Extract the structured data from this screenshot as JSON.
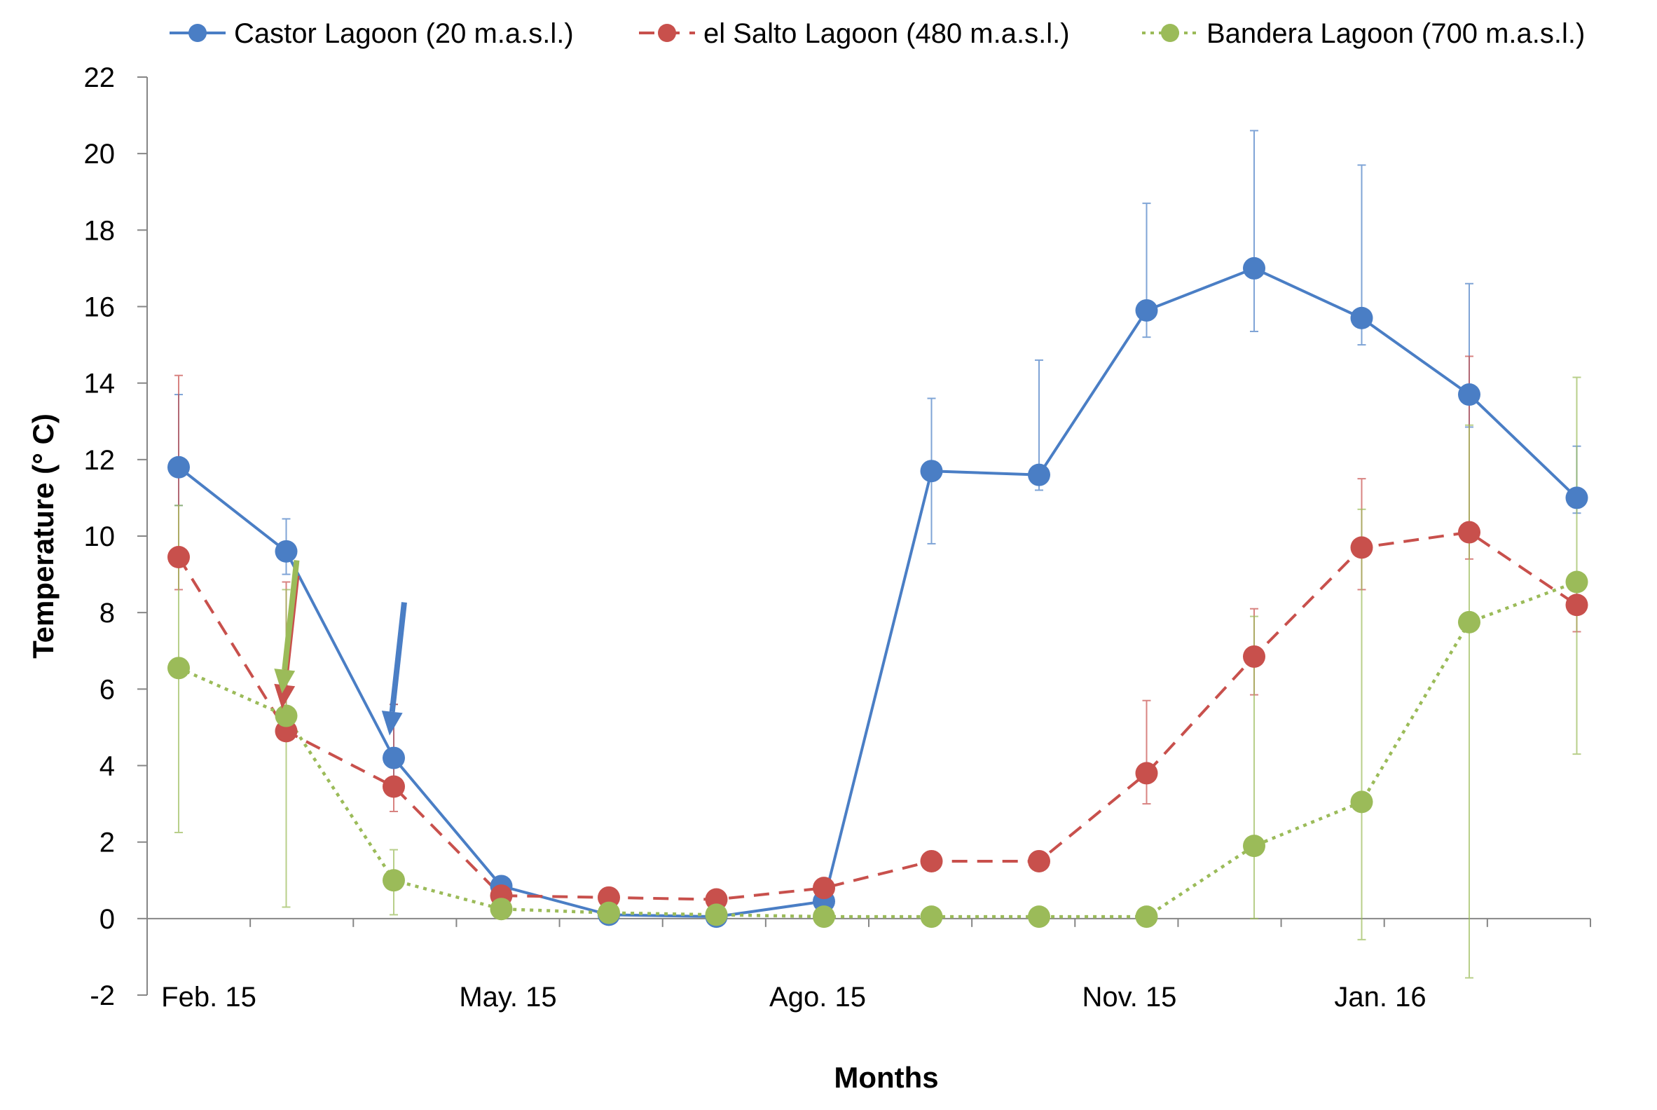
{
  "chart_data": {
    "type": "line",
    "title": "",
    "xlabel": "Months",
    "ylabel": "Temperature (° C)",
    "ylim": [
      -2,
      22
    ],
    "yticks": [
      -2,
      0,
      2,
      4,
      6,
      8,
      10,
      12,
      14,
      16,
      18,
      20,
      22
    ],
    "grid": false,
    "legend_position": "top",
    "x_tick_labels": [
      {
        "label": "Feb. 15",
        "index": 0
      },
      {
        "label": "May. 15",
        "index": 3
      },
      {
        "label": "Ago. 15",
        "index": 6
      },
      {
        "label": "Nov. 15",
        "index": 9
      },
      {
        "label": "Jan. 16",
        "index": 11
      }
    ],
    "n_points": 14,
    "series": [
      {
        "name": "Castor Lagoon (20 m.a.s.l.)",
        "color": "#4A7EC5",
        "line_style": "solid",
        "values": [
          11.8,
          9.6,
          4.2,
          0.85,
          0.1,
          0.05,
          0.45,
          11.7,
          11.6,
          15.9,
          17.0,
          15.7,
          13.7,
          11.0
        ],
        "error_high": [
          13.7,
          10.45,
          5.6,
          0.9,
          0.15,
          0.1,
          0.5,
          13.6,
          14.6,
          18.7,
          20.6,
          19.7,
          16.6,
          12.35
        ],
        "error_low": [
          10.8,
          9.0,
          3.6,
          0.8,
          0.05,
          0.0,
          0.4,
          9.8,
          11.2,
          15.2,
          15.35,
          15.0,
          12.85,
          10.6
        ],
        "arrow_at_index": 2
      },
      {
        "name": "el Salto Lagoon (480 m.a.s.l.)",
        "color": "#C8504C",
        "line_style": "dashed",
        "values": [
          9.45,
          4.9,
          3.45,
          0.6,
          0.55,
          0.5,
          0.8,
          1.5,
          1.5,
          3.8,
          6.85,
          9.7,
          10.1,
          8.2
        ],
        "error_high": [
          14.2,
          8.8,
          5.6,
          0.7,
          0.6,
          0.55,
          0.9,
          1.6,
          1.6,
          5.7,
          8.1,
          11.5,
          14.7,
          8.9
        ],
        "error_low": [
          8.6,
          4.7,
          2.8,
          0.5,
          0.5,
          0.45,
          0.7,
          1.4,
          1.4,
          3.0,
          5.85,
          8.6,
          9.4,
          7.5
        ],
        "arrow_at_index": 1
      },
      {
        "name": "Bandera Lagoon (700 m.a.s.l.)",
        "color": "#9BBB59",
        "line_style": "dotted",
        "values": [
          6.55,
          5.3,
          1.0,
          0.25,
          0.15,
          0.1,
          0.05,
          0.05,
          0.05,
          0.05,
          1.9,
          3.05,
          7.75,
          8.8
        ],
        "error_high": [
          10.8,
          8.6,
          1.8,
          0.3,
          0.2,
          0.15,
          0.1,
          0.1,
          0.1,
          0.1,
          7.9,
          10.7,
          12.9,
          14.15
        ],
        "error_low": [
          2.25,
          0.3,
          0.1,
          0.2,
          0.1,
          0.05,
          0.0,
          0.0,
          0.0,
          0.0,
          0.0,
          -0.55,
          -1.55,
          4.3
        ],
        "arrow_at_index": 1
      }
    ]
  }
}
